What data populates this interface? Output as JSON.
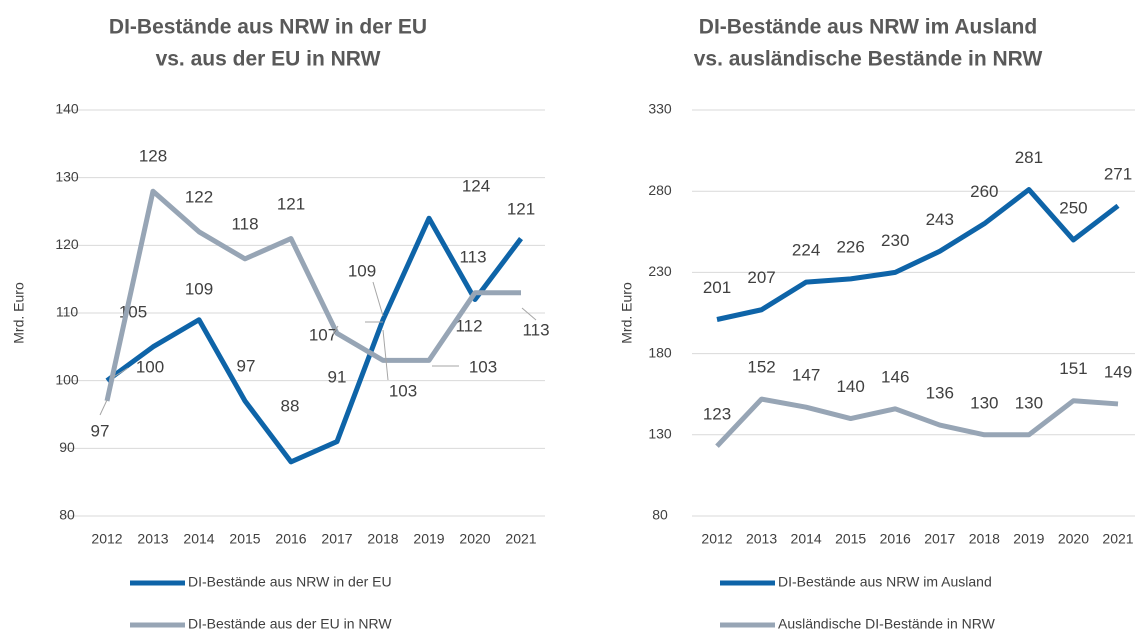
{
  "chart_data": [
    {
      "type": "line",
      "title": [
        "DI-Bestände aus NRW in der EU",
        "vs. aus der EU in NRW"
      ],
      "y_label": "Mrd. Euro",
      "categories": [
        "2012",
        "2013",
        "2014",
        "2015",
        "2016",
        "2017",
        "2018",
        "2019",
        "2020",
        "2021"
      ],
      "series": [
        {
          "name": "DI-Bestände aus NRW in der EU",
          "color": "#0e64a8",
          "values": [
            100,
            105,
            109,
            97,
            88,
            91,
            109,
            124,
            112,
            121
          ]
        },
        {
          "name": "DI-Bestände aus der EU in NRW",
          "color": "#97a5b5",
          "values": [
            97,
            128,
            122,
            118,
            121,
            107,
            103,
            103,
            113,
            113
          ]
        }
      ],
      "ylim": [
        80,
        140
      ],
      "yticks": [
        80,
        90,
        100,
        110,
        120,
        130,
        140
      ],
      "grid": true
    },
    {
      "type": "line",
      "title": [
        "DI-Bestände aus NRW im Ausland",
        "vs. ausländische Bestände in NRW"
      ],
      "y_label": "Mrd. Euro",
      "categories": [
        "2012",
        "2013",
        "2014",
        "2015",
        "2016",
        "2017",
        "2018",
        "2019",
        "2020",
        "2021"
      ],
      "series": [
        {
          "name": "DI-Bestände aus NRW im Ausland",
          "color": "#0e64a8",
          "values": [
            201,
            207,
            224,
            226,
            230,
            243,
            260,
            281,
            250,
            271
          ]
        },
        {
          "name": "Ausländische DI-Bestände in NRW",
          "color": "#97a5b5",
          "values": [
            123,
            152,
            147,
            140,
            146,
            136,
            130,
            130,
            151,
            149
          ]
        }
      ],
      "ylim": [
        80,
        330
      ],
      "yticks": [
        80,
        130,
        180,
        230,
        280,
        330
      ],
      "grid": true
    }
  ]
}
